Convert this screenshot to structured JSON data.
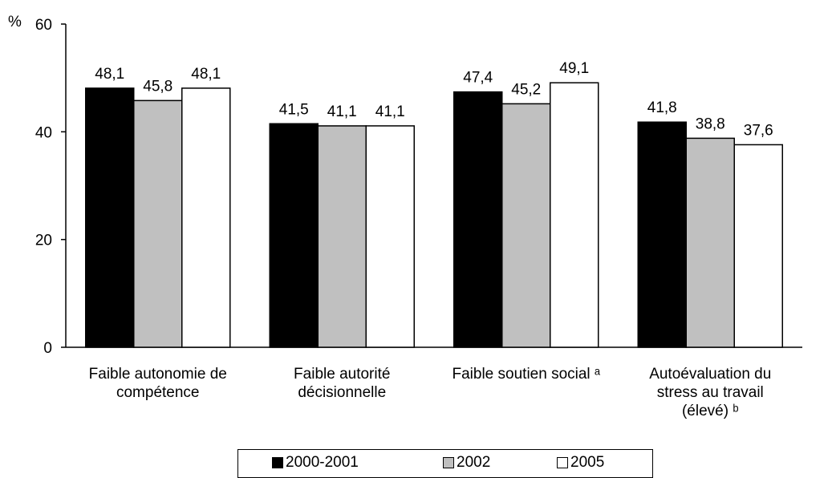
{
  "chart_data": {
    "type": "bar",
    "unit_label": "%",
    "categories": [
      [
        "Faible autonomie de",
        "compétence"
      ],
      [
        "Faible autorité",
        "décisionnelle"
      ],
      [
        "Faible soutien social ᵃ"
      ],
      [
        "Autoévaluation du",
        "stress au travail",
        "(élevé) ᵇ"
      ]
    ],
    "series": [
      {
        "name": "2000-2001",
        "color": "#000000",
        "values": [
          48.1,
          41.5,
          47.4,
          41.8
        ],
        "labels": [
          "48,1",
          "41,5",
          "47,4",
          "41,8"
        ]
      },
      {
        "name": "2002",
        "color": "#c0c0c0",
        "values": [
          45.8,
          41.1,
          45.2,
          38.8
        ],
        "labels": [
          "45,8",
          "41,1",
          "45,2",
          "38,8"
        ]
      },
      {
        "name": "2005",
        "color": "#ffffff",
        "values": [
          48.1,
          41.1,
          49.1,
          37.6
        ],
        "labels": [
          "48,1",
          "41,1",
          "49,1",
          "37,6"
        ]
      }
    ],
    "ylim": [
      0,
      60
    ],
    "yticks": [
      0,
      20,
      40,
      60
    ],
    "grid": false,
    "legend_position": "bottom"
  }
}
